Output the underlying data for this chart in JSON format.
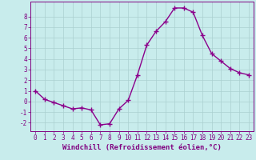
{
  "x": [
    0,
    1,
    2,
    3,
    4,
    5,
    6,
    7,
    8,
    9,
    10,
    11,
    12,
    13,
    14,
    15,
    16,
    17,
    18,
    19,
    20,
    21,
    22,
    23
  ],
  "y": [
    1,
    0.2,
    -0.1,
    -0.4,
    -0.7,
    -0.6,
    -0.8,
    -2.2,
    -2.1,
    -0.7,
    0.1,
    2.5,
    5.3,
    6.6,
    7.5,
    8.8,
    8.8,
    8.4,
    6.2,
    4.5,
    3.8,
    3.1,
    2.7,
    2.5
  ],
  "line_color": "#8B008B",
  "marker": "+",
  "marker_size": 4,
  "bg_color": "#c8ecec",
  "grid_color": "#aad0d0",
  "xlabel": "Windchill (Refroidissement éolien,°C)",
  "xlim": [
    -0.5,
    23.5
  ],
  "ylim": [
    -2.8,
    9.4
  ],
  "yticks": [
    -2,
    -1,
    0,
    1,
    2,
    3,
    4,
    5,
    6,
    7,
    8
  ],
  "xticks": [
    0,
    1,
    2,
    3,
    4,
    5,
    6,
    7,
    8,
    9,
    10,
    11,
    12,
    13,
    14,
    15,
    16,
    17,
    18,
    19,
    20,
    21,
    22,
    23
  ],
  "tick_label_fontsize": 5.5,
  "xlabel_fontsize": 6.5,
  "tick_color": "#800080",
  "spine_color": "#800080",
  "line_width": 1.0,
  "marker_color": "#8B008B"
}
